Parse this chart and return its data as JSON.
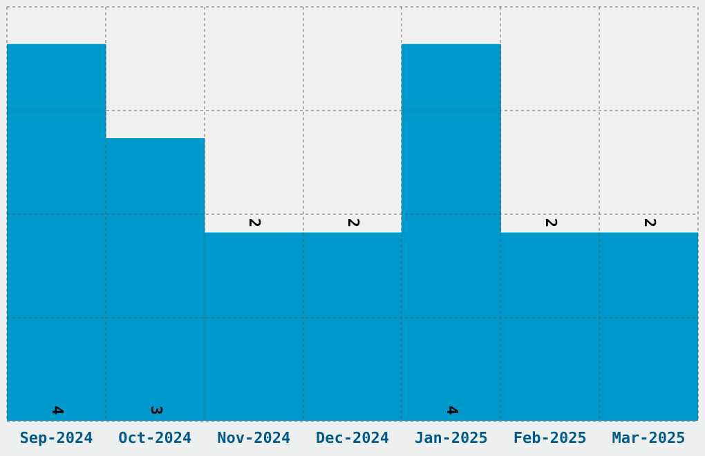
{
  "chart_data": {
    "type": "bar",
    "categories": [
      "Sep-2024",
      "Oct-2024",
      "Nov-2024",
      "Dec-2024",
      "Jan-2025",
      "Feb-2025",
      "Mar-2025"
    ],
    "values": [
      4,
      3,
      2,
      2,
      4,
      2,
      2
    ],
    "color": "#0099cc",
    "ylim": [
      0,
      4.4
    ],
    "yticks": [
      {
        "value": 0,
        "label": null
      },
      {
        "value": 1.1,
        "label": null
      },
      {
        "value": 2.2,
        "label": null
      },
      {
        "value": 3.3,
        "label": null
      },
      {
        "value": 4.4,
        "label": null
      }
    ],
    "tick_labels": "x",
    "grid": true,
    "legend": false,
    "data_labels": true
  }
}
